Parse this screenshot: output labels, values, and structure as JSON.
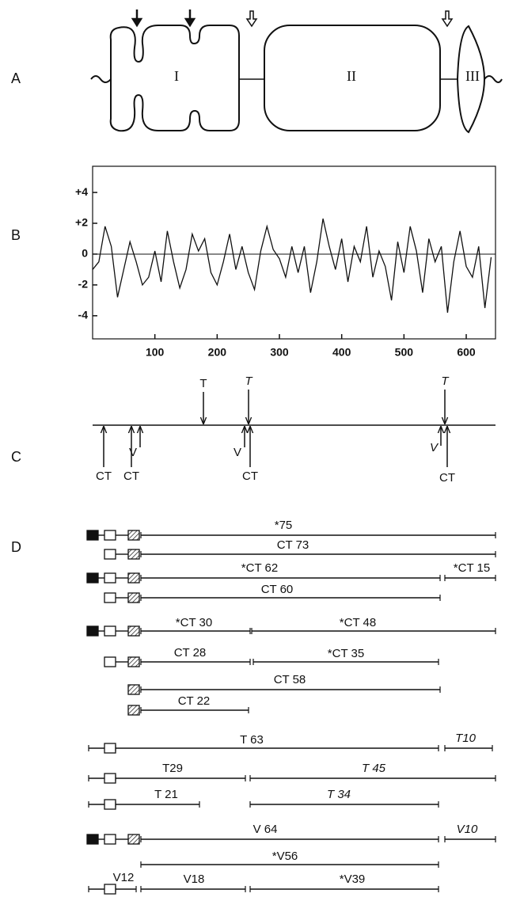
{
  "panel_labels": [
    "A",
    "B",
    "C",
    "D"
  ],
  "panel_a": {
    "domains": [
      "I",
      "II",
      "III"
    ]
  },
  "chart_data": {
    "type": "line",
    "x": [
      0,
      10,
      20,
      30,
      40,
      50,
      60,
      70,
      80,
      90,
      100,
      110,
      120,
      130,
      140,
      150,
      160,
      170,
      180,
      190,
      200,
      210,
      220,
      230,
      240,
      250,
      260,
      270,
      280,
      290,
      300,
      310,
      320,
      330,
      340,
      350,
      360,
      370,
      380,
      390,
      400,
      410,
      420,
      430,
      440,
      450,
      460,
      470,
      480,
      490,
      500,
      510,
      520,
      530,
      540,
      550,
      560,
      570,
      580,
      590,
      600,
      610,
      620,
      630,
      640
    ],
    "values": [
      -1,
      -0.5,
      1.8,
      0.5,
      -2.8,
      -1,
      0.8,
      -0.5,
      -2,
      -1.5,
      0.2,
      -1.8,
      1.5,
      -0.5,
      -2.2,
      -1,
      1.3,
      0.2,
      1,
      -1.2,
      -2,
      -0.5,
      1.3,
      -1,
      0.5,
      -1.2,
      -2.3,
      0.2,
      1.8,
      0.3,
      -0.3,
      -1.5,
      0.5,
      -1.2,
      0.5,
      -2.5,
      -0.5,
      2.3,
      0.5,
      -1,
      1,
      -1.8,
      0.5,
      -0.5,
      1.8,
      -1.5,
      0.2,
      -0.8,
      -3,
      0.8,
      -1.2,
      1.8,
      0.2,
      -2.5,
      1,
      -0.5,
      0.5,
      -3.8,
      -0.5,
      1.5,
      -0.8,
      -1.5,
      0.5,
      -3.5,
      -0.2
    ],
    "color": "#111111",
    "xlim": [
      0,
      647
    ],
    "ylim": [
      -5.5,
      5.7
    ],
    "xticks": [
      100,
      200,
      300,
      400,
      500,
      600
    ],
    "yticks": [
      {
        "value": 4,
        "label": "+4"
      },
      {
        "value": 2,
        "label": "+2"
      },
      0,
      -2,
      -4
    ]
  },
  "panel_c": {
    "above": [
      "T",
      "T",
      "T"
    ],
    "below": [
      "CT",
      "CT",
      "V",
      "V",
      "CT",
      "V",
      "CT"
    ]
  },
  "panel_d": {
    "rows": [
      [
        "*75"
      ],
      [
        "CT 73"
      ],
      [
        "*CT 62",
        "*CT 15"
      ],
      [
        "CT 60"
      ],
      [
        "*CT 30",
        "*CT 48"
      ],
      [
        "CT 28",
        "*CT 35"
      ],
      [
        "CT 58"
      ],
      [
        "CT 22"
      ],
      [
        "T 63",
        "T10"
      ],
      [
        "T29",
        "T 45"
      ],
      [
        "T 21",
        "T 34"
      ],
      [
        "V 64",
        "V10"
      ],
      [
        "*V56"
      ],
      [
        "V12",
        "V18",
        "*V39"
      ]
    ]
  }
}
